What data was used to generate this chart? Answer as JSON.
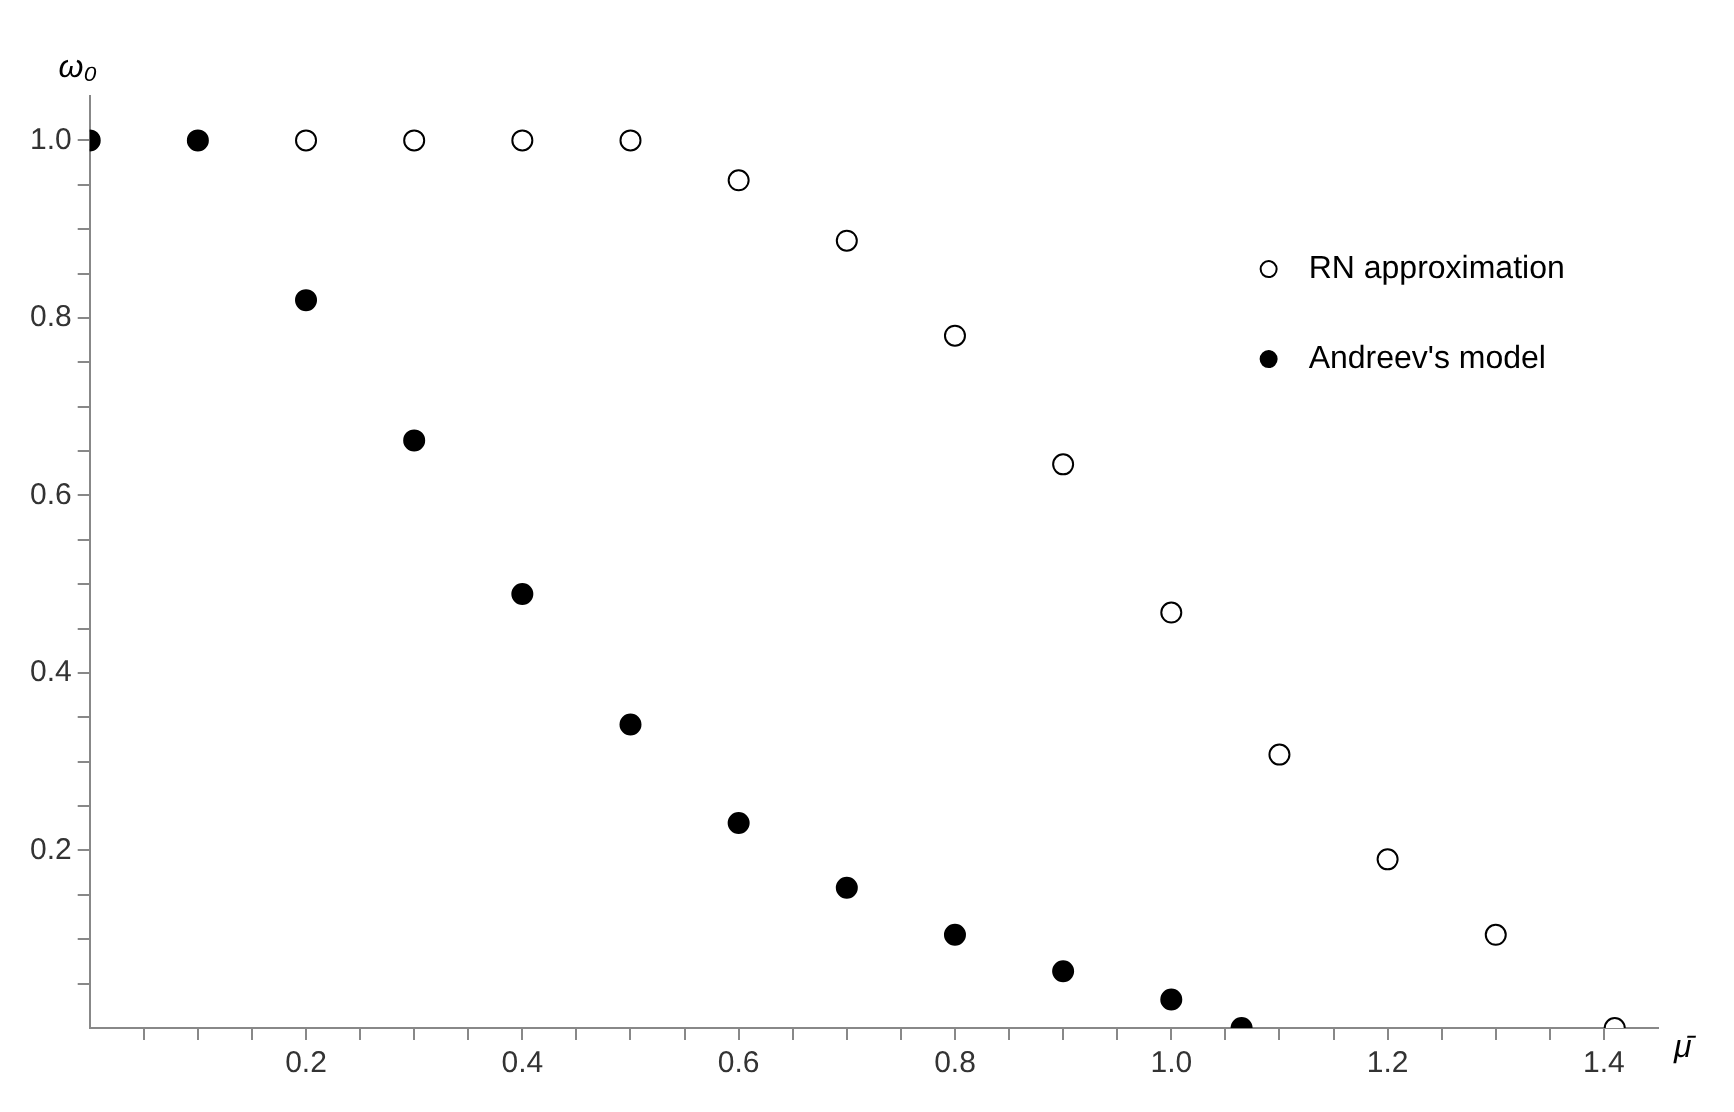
{
  "chart_data": {
    "type": "scatter",
    "xlabel": "μ̄",
    "ylabel": "ω₀",
    "xlim": [
      0,
      1.45
    ],
    "ylim": [
      0,
      1.05
    ],
    "xticks": [
      {
        "value": 0.05,
        "label": null
      },
      {
        "value": 0.1,
        "label": null
      },
      {
        "value": 0.15,
        "label": null
      },
      0.2,
      {
        "value": 0.25,
        "label": null
      },
      {
        "value": 0.3,
        "label": null
      },
      {
        "value": 0.35,
        "label": null
      },
      0.4,
      {
        "value": 0.45,
        "label": null
      },
      {
        "value": 0.5,
        "label": null
      },
      {
        "value": 0.55,
        "label": null
      },
      0.6,
      {
        "value": 0.65,
        "label": null
      },
      {
        "value": 0.7,
        "label": null
      },
      {
        "value": 0.75,
        "label": null
      },
      0.8,
      {
        "value": 0.85,
        "label": null
      },
      {
        "value": 0.9,
        "label": null
      },
      {
        "value": 0.95,
        "label": null
      },
      {
        "value": 1,
        "label": "1.0"
      },
      {
        "value": 1.05,
        "label": null
      },
      {
        "value": 1.1,
        "label": null
      },
      {
        "value": 1.15,
        "label": null
      },
      1.2,
      {
        "value": 1.25,
        "label": null
      },
      {
        "value": 1.3,
        "label": null
      },
      {
        "value": 1.35,
        "label": null
      },
      1.4
    ],
    "yticks": [
      {
        "value": 0.05,
        "label": null
      },
      {
        "value": 0.1,
        "label": null
      },
      {
        "value": 0.15,
        "label": null
      },
      0.2,
      {
        "value": 0.25,
        "label": null
      },
      {
        "value": 0.3,
        "label": null
      },
      {
        "value": 0.35,
        "label": null
      },
      0.4,
      {
        "value": 0.45,
        "label": null
      },
      {
        "value": 0.5,
        "label": null
      },
      {
        "value": 0.55,
        "label": null
      },
      0.6,
      {
        "value": 0.65,
        "label": null
      },
      {
        "value": 0.7,
        "label": null
      },
      {
        "value": 0.75,
        "label": null
      },
      0.8,
      {
        "value": 0.85,
        "label": null
      },
      {
        "value": 0.9,
        "label": null
      },
      {
        "value": 0.95,
        "label": null
      },
      {
        "value": 1,
        "label": "1.0"
      }
    ],
    "grid": false,
    "legend": "top right",
    "marker": "circle",
    "series": [
      {
        "name": "RN approximation",
        "color": "#000000",
        "x": [
          0.2,
          0.3,
          0.4,
          0.5,
          0.6,
          0.7,
          0.8,
          0.9,
          1.0,
          1.1,
          1.2,
          1.3,
          1.41
        ],
        "values": [
          1,
          1,
          1,
          1,
          0.955,
          0.887,
          0.78,
          0.635,
          0.468,
          0.308,
          0.19,
          0.105,
          0
        ]
      },
      {
        "name": "Andreev's model",
        "color": "#000000",
        "x": [
          0,
          0.1,
          0.2,
          0.3,
          0.4,
          0.5,
          0.6,
          0.7,
          0.8,
          0.9,
          1.0,
          1.065
        ],
        "values": [
          1,
          1,
          0.82,
          0.662,
          0.489,
          0.342,
          0.231,
          0.158,
          0.105,
          0.064,
          0.032,
          0
        ]
      }
    ]
  }
}
